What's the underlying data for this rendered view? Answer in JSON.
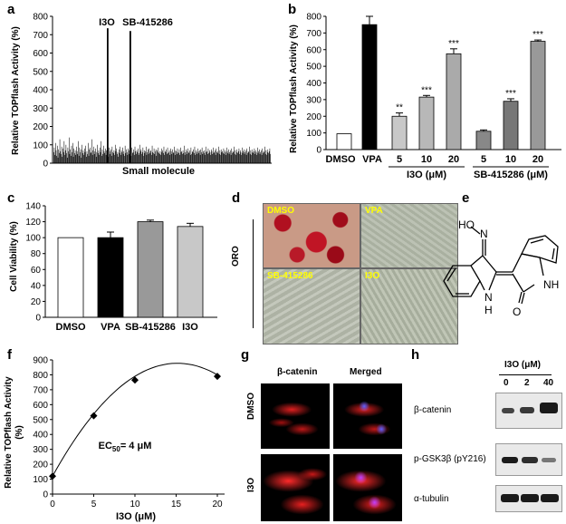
{
  "labels": {
    "a": "a",
    "b": "b",
    "c": "c",
    "d": "d",
    "e": "e",
    "f": "f",
    "g": "g",
    "h": "h"
  },
  "chart_data": [
    {
      "id": "a",
      "type": "bar",
      "ylabel": "Relative TOPflash Activity (%)",
      "xlabel": "Small molecule",
      "ylim": [
        0,
        800
      ],
      "yticks": [
        0,
        100,
        200,
        300,
        400,
        500,
        600,
        700,
        800
      ],
      "annotations": [
        "I3O",
        "SB-415286"
      ],
      "values": [
        60,
        85,
        45,
        110,
        70,
        40,
        95,
        30,
        75,
        55,
        130,
        65,
        50,
        90,
        35,
        80,
        60,
        120,
        45,
        70,
        100,
        55,
        30,
        85,
        65,
        140,
        50,
        75,
        40,
        95,
        60,
        110,
        35,
        80,
        55,
        70,
        45,
        90,
        65,
        50,
        120,
        40,
        85,
        60,
        75,
        30,
        100,
        55,
        70,
        45,
        80,
        60,
        95,
        35,
        65,
        50,
        110,
        40,
        75,
        85,
        55,
        60,
        130,
        45,
        70,
        90,
        50,
        65,
        80,
        35,
        60,
        100,
        55,
        70,
        45,
        85,
        60,
        120,
        40,
        75,
        50,
        95,
        65,
        55,
        80,
        45,
        70,
        60,
        110,
        35,
        85,
        50,
        65,
        75,
        40,
        90,
        60,
        55,
        70,
        45,
        100,
        65,
        80,
        50,
        60,
        35,
        75,
        55,
        90,
        45,
        70,
        60,
        85,
        50,
        65,
        40,
        95,
        55,
        75,
        60,
        45,
        80,
        70,
        50,
        65,
        110,
        40,
        85,
        55,
        60,
        75,
        45,
        90,
        65,
        50,
        70,
        60,
        80,
        45,
        55,
        100,
        65,
        75,
        50,
        60,
        85,
        40,
        70,
        55,
        65,
        90,
        45,
        60,
        75,
        50,
        80,
        55,
        65,
        70,
        45,
        95,
        60,
        55,
        80,
        50,
        65,
        75,
        40,
        70,
        60,
        85,
        55,
        50,
        65,
        45,
        80,
        60,
        70,
        55,
        90,
        45,
        65,
        60,
        75,
        50,
        85,
        55,
        60,
        70,
        45,
        80,
        65,
        50,
        75,
        60,
        55,
        90,
        45,
        70,
        65,
        50,
        80,
        60,
        55,
        75,
        45,
        85,
        60,
        65,
        50,
        70,
        55,
        95,
        45,
        60,
        75,
        50,
        65,
        80,
        55,
        60,
        70,
        45,
        85,
        50,
        65,
        60,
        75,
        55,
        90,
        45,
        70,
        60,
        50,
        80,
        65,
        55,
        70,
        45,
        75,
        60,
        85,
        50,
        65,
        55,
        70,
        45,
        90,
        60,
        65,
        50,
        80,
        55,
        70,
        60,
        45,
        75,
        65,
        50,
        85,
        55,
        60,
        70,
        45,
        80,
        60,
        65,
        55,
        90,
        50,
        70,
        45,
        75,
        60,
        65,
        55,
        80,
        50,
        70,
        60,
        45,
        85,
        65,
        55,
        75,
        50,
        60,
        70,
        45,
        80,
        55,
        65,
        60,
        90,
        50,
        70,
        45,
        75,
        60,
        55,
        65,
        80,
        50,
        70,
        60,
        45,
        85,
        55,
        65,
        75,
        50,
        60,
        70,
        45,
        80,
        55,
        65,
        60,
        90,
        50,
        70,
        45,
        75,
        60,
        55,
        65,
        80,
        50,
        70,
        60,
        45,
        85,
        55,
        65,
        75,
        50,
        60,
        70,
        45,
        80,
        55,
        65,
        60,
        90,
        50,
        70,
        45,
        75,
        60,
        55,
        65,
        80,
        50
      ]
    },
    {
      "id": "b",
      "type": "bar",
      "ylabel": "Relative TOPflash Activity (%)",
      "ylim": [
        0,
        800
      ],
      "yticks": [
        0,
        100,
        200,
        300,
        400,
        500,
        600,
        700,
        800
      ],
      "categories": [
        "DMSO",
        "VPA",
        "5",
        "10",
        "20",
        "5",
        "10",
        "20"
      ],
      "values": [
        95,
        750,
        200,
        315,
        575,
        110,
        290,
        650
      ],
      "errors": [
        0,
        50,
        20,
        10,
        30,
        8,
        15,
        8
      ],
      "significance": [
        "",
        "",
        "**",
        "***",
        "***",
        "",
        "***",
        "***"
      ],
      "groups": [
        {
          "label": "I3O (μM)",
          "span": [
            2,
            4
          ]
        },
        {
          "label": "SB-415286 (μM)",
          "span": [
            5,
            7
          ]
        }
      ]
    },
    {
      "id": "c",
      "type": "bar",
      "ylabel": "Cell Viability (%)",
      "ylim": [
        0,
        140
      ],
      "yticks": [
        0,
        20,
        40,
        60,
        80,
        100,
        120,
        140
      ],
      "categories": [
        "DMSO",
        "VPA",
        "SB-415286",
        "I3O"
      ],
      "values": [
        100,
        100,
        120,
        114
      ],
      "errors": [
        0,
        7,
        2,
        4
      ]
    },
    {
      "id": "f",
      "type": "scatter",
      "ylabel_lines": [
        "Relative TOPflash Activity",
        "(%)"
      ],
      "xlabel": "I3O  (μM)",
      "xlim": [
        0,
        20
      ],
      "xticks": [
        0,
        5,
        10,
        15,
        20
      ],
      "ylim": [
        0,
        900
      ],
      "yticks": [
        0,
        100,
        200,
        300,
        400,
        500,
        600,
        700,
        800,
        900
      ],
      "x": [
        0,
        5,
        10,
        20
      ],
      "y": [
        120,
        525,
        765,
        790
      ],
      "annotation": "EC50= 4 μM"
    }
  ],
  "panel_d": {
    "side_label": "ORO",
    "images": [
      "DMSO",
      "VPA",
      "SB-415286",
      "I3O"
    ]
  },
  "panel_e": {
    "atoms": {
      "hon": "HO",
      "n_oxime": "N",
      "nh_left": "N",
      "h_left": "H",
      "nh_right": "NH",
      "o": "O"
    }
  },
  "panel_g": {
    "columns": [
      "β-catenin",
      "Merged"
    ],
    "rows": [
      "DMSO",
      "I3O"
    ]
  },
  "panel_h": {
    "header": "I3O (μM)",
    "doses": [
      "0",
      "2",
      "40"
    ],
    "rows": [
      "β-catenin",
      "p-GSK3β (pY216)",
      "α-tubulin"
    ]
  }
}
